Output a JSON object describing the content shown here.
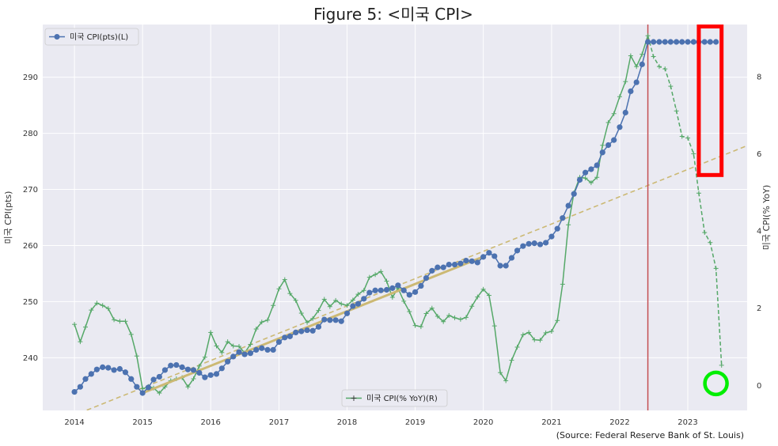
{
  "chart_data": {
    "type": "line",
    "title": "Figure 5: <미국 CPI>",
    "source": "(Source: Federal Reserve Bank of St. Louis)",
    "x_ticks": [
      "2014",
      "2015",
      "2016",
      "2017",
      "2018",
      "2019",
      "2020",
      "2021",
      "2022",
      "2023"
    ],
    "xlim": [
      "2013-07-15",
      "2023-11-15"
    ],
    "left_axis": {
      "label": "미국 CPI(pts)",
      "ylim": [
        230.6,
        299.4
      ],
      "ticks": [
        240,
        250,
        260,
        270,
        280,
        290
      ]
    },
    "right_axis": {
      "label": "미국 CPI(% YoY)",
      "ylim": [
        -0.65,
        9.35
      ],
      "ticks": [
        0,
        2,
        4,
        6,
        8
      ]
    },
    "legend": {
      "left_entry": "미국 CPI(pts)(L)",
      "left_position": "upper-left",
      "right_entry": "미국 CPI(% YoY)(R)",
      "right_position": "lower-center"
    },
    "colors": {
      "level": "#4c72b0",
      "yoy": "#55a868",
      "trend": "#ccb974",
      "vline": "#c44e52",
      "red_box": "#ff0000",
      "green_circle": "#00ee00",
      "background": "#eaeaf2"
    },
    "vline_date": "2022-06-01",
    "highlights": {
      "red_box": {
        "x": [
          "2023-03-01",
          "2023-07-01"
        ],
        "y_right": [
          5.45,
          9.3
        ]
      },
      "green_circle": {
        "x": "2023-06-01",
        "y_right": 0.05
      }
    },
    "series": [
      {
        "name": "미국 CPI(pts)(L)",
        "axis": "left",
        "start": "2014-01-01",
        "values": [
          233.9,
          234.8,
          236.2,
          237.1,
          237.9,
          238.3,
          238.2,
          237.8,
          238.0,
          237.4,
          236.2,
          234.8,
          233.7,
          234.7,
          236.1,
          236.6,
          237.8,
          238.6,
          238.7,
          238.3,
          237.9,
          237.8,
          237.3,
          236.5,
          236.9,
          237.1,
          238.1,
          239.3,
          240.2,
          241.0,
          240.6,
          240.8,
          241.4,
          241.7,
          241.4,
          241.4,
          242.8,
          243.6,
          243.8,
          244.5,
          244.7,
          244.9,
          244.8,
          245.5,
          246.8,
          246.7,
          246.7,
          246.5,
          247.9,
          249.2,
          249.6,
          250.5,
          251.6,
          251.99,
          252.0,
          252.1,
          252.4,
          252.9,
          252.0,
          251.2,
          251.7,
          252.8,
          254.2,
          255.5,
          256.1,
          256.1,
          256.6,
          256.6,
          256.8,
          257.3,
          257.2,
          256.97,
          257.97,
          258.7,
          258.1,
          256.4,
          256.4,
          257.8,
          259.1,
          259.9,
          260.3,
          260.4,
          260.2,
          260.5,
          261.6,
          263.0,
          264.9,
          267.1,
          269.2,
          271.7,
          273.0,
          273.6,
          274.3,
          276.6,
          277.9,
          278.8,
          281.1,
          283.7,
          287.5,
          289.1,
          292.3,
          296.3,
          296.3,
          296.3,
          296.3,
          296.3,
          296.3,
          296.3,
          296.3,
          296.3,
          296.3,
          296.3,
          296.3,
          296.3
        ]
      },
      {
        "name": "미국 CPI(% YoY)(R)",
        "axis": "right",
        "start": "2014-01-01",
        "solid_until": "2022-06-01",
        "values": [
          1.58,
          1.13,
          1.51,
          1.95,
          2.13,
          2.07,
          1.99,
          1.7,
          1.66,
          1.66,
          1.32,
          0.76,
          -0.09,
          -0.03,
          -0.07,
          -0.2,
          -0.04,
          0.12,
          0.17,
          0.2,
          -0.04,
          0.17,
          0.5,
          0.73,
          1.37,
          1.02,
          0.85,
          1.13,
          1.02,
          1.01,
          0.84,
          1.06,
          1.46,
          1.64,
          1.69,
          2.07,
          2.5,
          2.74,
          2.38,
          2.2,
          1.87,
          1.63,
          1.73,
          1.94,
          2.23,
          2.04,
          2.2,
          2.11,
          2.07,
          2.21,
          2.36,
          2.46,
          2.8,
          2.87,
          2.95,
          2.7,
          2.28,
          2.52,
          2.18,
          1.91,
          1.55,
          1.52,
          1.86,
          2.0,
          1.79,
          1.65,
          1.81,
          1.75,
          1.71,
          1.76,
          2.05,
          2.29,
          2.49,
          2.33,
          1.54,
          0.33,
          0.12,
          0.65,
          0.99,
          1.31,
          1.37,
          1.18,
          1.17,
          1.36,
          1.4,
          1.68,
          2.62,
          4.16,
          4.99,
          5.39,
          5.37,
          5.25,
          5.39,
          6.22,
          6.81,
          7.04,
          7.48,
          7.87,
          8.54,
          8.26,
          8.58,
          9.06,
          8.52,
          8.26,
          8.2,
          7.75,
          7.11,
          6.45,
          6.41,
          6.0,
          4.98,
          3.96,
          3.7,
          3.03,
          0.52
        ]
      },
      {
        "name": "",
        "axis": "left",
        "style": "solid-trend",
        "x": [
          "2015-01-01",
          "2020-01-01"
        ],
        "y": [
          233.7,
          258.0
        ]
      },
      {
        "name": "",
        "axis": "left",
        "style": "dashed-trend",
        "x": [
          "2013-07-15",
          "2023-11-15"
        ],
        "y": [
          227.5,
          277.8
        ]
      }
    ]
  }
}
